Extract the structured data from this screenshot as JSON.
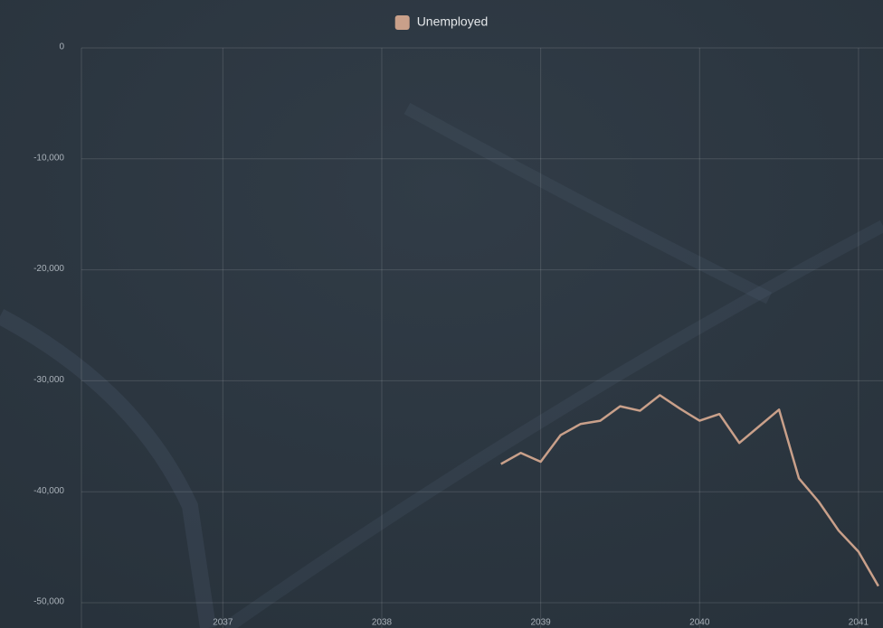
{
  "chart_data": {
    "type": "line",
    "x": [
      2038.75,
      2038.875,
      2039,
      2039.125,
      2039.25,
      2039.375,
      2039.5,
      2039.625,
      2039.75,
      2039.875,
      2040,
      2040.125,
      2040.25,
      2040.375,
      2040.5,
      2040.625,
      2040.75,
      2040.875,
      2041,
      2041.125
    ],
    "series": [
      {
        "name": "Unemployed",
        "color": "#c9a08a",
        "values": [
          -37500,
          -36500,
          -37300,
          -34900,
          -33900,
          -33600,
          -32300,
          -32700,
          -31300,
          -32500,
          -33600,
          -33000,
          -35600,
          -34100,
          -32600,
          -38800,
          -40900,
          -43500,
          -45400,
          -48500
        ]
      }
    ],
    "xlim": [
      2036.11,
      2041.12
    ],
    "xticks": [
      2037,
      2038,
      2039,
      2040,
      2041
    ],
    "ylim": [
      -50000,
      0
    ],
    "yticks": [
      {
        "value": -50000,
        "label": "-50,000"
      },
      {
        "value": -40000,
        "label": "-40,000"
      },
      {
        "value": -30000,
        "label": "-30,000"
      },
      {
        "value": -20000,
        "label": "-20,000"
      },
      {
        "value": -10000,
        "label": "-10,000"
      },
      0
    ],
    "grid": true,
    "legend": "top"
  }
}
